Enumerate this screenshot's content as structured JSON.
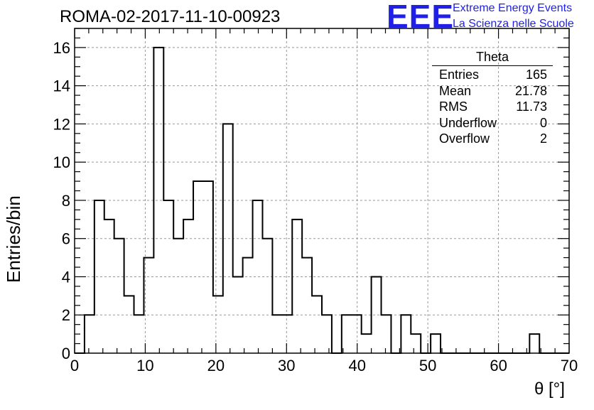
{
  "header": {
    "run_title": "ROMA-02-2017-11-10-00923",
    "logo_mark": "EEE",
    "logo_line1": "Extreme Energy Events",
    "logo_line2": "La Scienza nelle Scuole",
    "logo_color": "#1f1fe6"
  },
  "stats_box": {
    "title": "Theta",
    "rows": [
      {
        "label": "Entries",
        "value": "165"
      },
      {
        "label": "Mean",
        "value": "21.78"
      },
      {
        "label": "RMS",
        "value": "11.73"
      },
      {
        "label": "Underflow",
        "value": "0"
      },
      {
        "label": "Overflow",
        "value": "2"
      }
    ]
  },
  "chart_data": {
    "type": "bar",
    "style": "step-histogram",
    "title": "ROMA-02-2017-11-10-00923",
    "xlabel": "θ [°]",
    "ylabel": "Entries/bin",
    "xlim": [
      0,
      70
    ],
    "ylim": [
      0,
      17
    ],
    "grid": true,
    "bin_width": 1.4,
    "bin_edges_start": 0,
    "xticks": [
      "0",
      "10",
      "20",
      "30",
      "40",
      "50",
      "60",
      "70"
    ],
    "yticks": [
      "0",
      "2",
      "4",
      "6",
      "8",
      "10",
      "12",
      "14",
      "16"
    ],
    "counts": [
      0,
      2,
      8,
      7,
      6,
      3,
      2,
      5,
      16,
      8,
      6,
      7,
      9,
      9,
      3,
      12,
      4,
      5,
      8,
      6,
      2,
      2,
      7,
      5,
      3,
      2,
      0,
      2,
      2,
      1,
      4,
      2,
      0,
      2,
      1,
      0,
      1,
      0,
      0,
      0,
      0,
      0,
      0,
      0,
      0,
      0,
      1,
      0,
      0,
      0
    ],
    "line_color": "#000000"
  }
}
